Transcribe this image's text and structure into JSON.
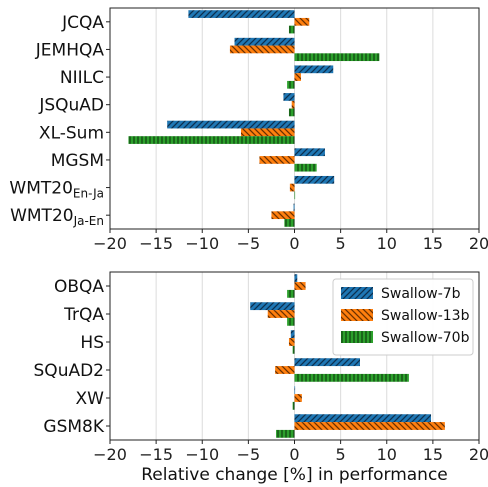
{
  "chart_data": [
    {
      "type": "bar",
      "orientation": "horizontal",
      "categories": [
        "JCQA",
        "JEMHQA",
        "NIILC",
        "JSQuAD",
        "XL-Sum",
        "MGSM",
        "WMT20|En-Ja",
        "WMT20|Ja-En"
      ],
      "series": [
        {
          "name": "Swallow-7b",
          "color": "#1f77b4",
          "pattern": "diagonal",
          "values": [
            -11.5,
            -6.5,
            4.2,
            -1.2,
            -13.8,
            3.3,
            4.3,
            -0.1
          ]
        },
        {
          "name": "Swallow-13b",
          "color": "#ff7f0e",
          "pattern": "backdiagonal",
          "values": [
            1.6,
            -7.0,
            0.7,
            -0.3,
            -5.8,
            -3.8,
            -0.5,
            -2.5
          ]
        },
        {
          "name": "Swallow-70b",
          "color": "#2ca02c",
          "pattern": "vertical",
          "values": [
            -0.6,
            9.2,
            -0.8,
            -0.6,
            -18.0,
            2.4,
            0.0,
            -1.1
          ]
        }
      ],
      "xlim": [
        -20,
        20
      ],
      "xticks": [
        "−20",
        "−15",
        "−10",
        "−5",
        "0",
        "5",
        "10",
        "15",
        "20"
      ],
      "xlabel": "",
      "grid": "vertical",
      "legend": "none"
    },
    {
      "type": "bar",
      "orientation": "horizontal",
      "categories": [
        "OBQA",
        "TrQA",
        "HS",
        "SQuAD2",
        "XW",
        "GSM8K"
      ],
      "series": [
        {
          "name": "Swallow-7b",
          "color": "#1f77b4",
          "pattern": "diagonal",
          "values": [
            0.3,
            -4.8,
            -0.4,
            7.1,
            0.0,
            14.8
          ]
        },
        {
          "name": "Swallow-13b",
          "color": "#ff7f0e",
          "pattern": "backdiagonal",
          "values": [
            1.2,
            -2.9,
            -0.6,
            -2.1,
            0.8,
            16.3
          ]
        },
        {
          "name": "Swallow-70b",
          "color": "#2ca02c",
          "pattern": "vertical",
          "values": [
            -0.8,
            -0.8,
            -0.2,
            12.4,
            -0.2,
            -2.0
          ]
        }
      ],
      "xlim": [
        -20,
        20
      ],
      "xticks": [
        "−20",
        "−15",
        "−10",
        "−5",
        "0",
        "5",
        "10",
        "15",
        "20"
      ],
      "xlabel": "Relative change [%] in performance",
      "grid": "vertical",
      "legend": "top-right"
    }
  ]
}
